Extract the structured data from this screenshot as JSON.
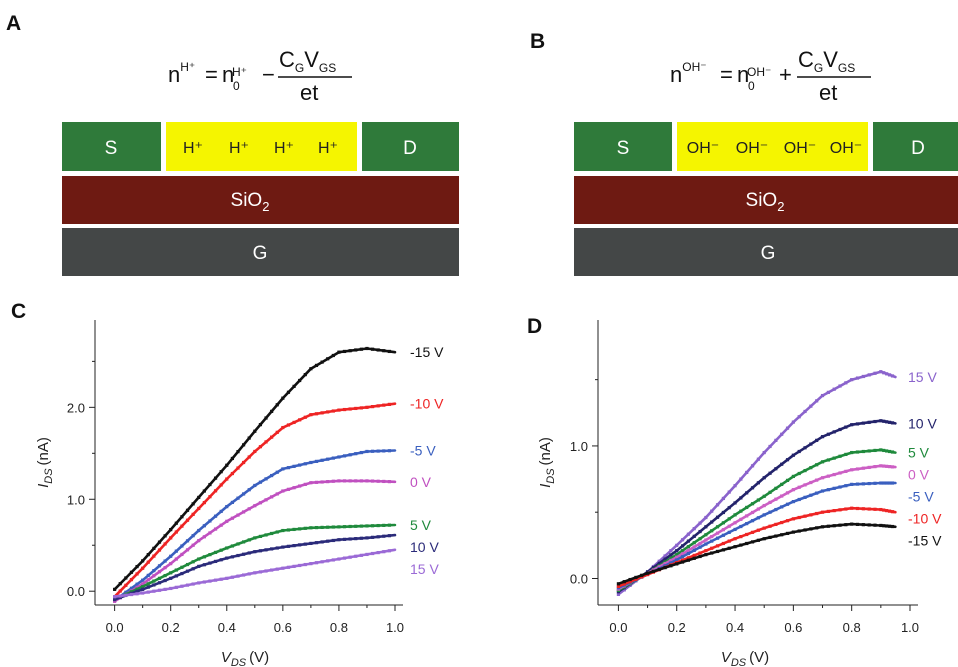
{
  "panels": {
    "a": {
      "label": "A"
    },
    "b": {
      "label": "B"
    },
    "c": {
      "label": "C"
    },
    "d": {
      "label": "D"
    }
  },
  "colors": {
    "contact": "#2f7a3a",
    "ions": "#f5f500",
    "oxide": "#6e1a12",
    "gate": "#444747"
  },
  "device_a": {
    "equation": {
      "lhs": "n",
      "lhs_sup": "H⁺",
      "eq": "=",
      "rhs": "n",
      "rhs_sub": "0",
      "rhs_sup": "H⁺",
      "op": "−",
      "num": [
        "C",
        "G",
        "V",
        "GS"
      ],
      "den": "et"
    },
    "source": "S",
    "drain": "D",
    "ions": [
      "H⁺",
      "H⁺",
      "H⁺",
      "H⁺"
    ],
    "oxide": {
      "text": "SiO",
      "sub": "2"
    },
    "gate": "G"
  },
  "device_b": {
    "equation": {
      "lhs": "n",
      "lhs_sup": "OH⁻",
      "eq": "=",
      "rhs": "n",
      "rhs_sub": "0",
      "rhs_sup": "OH⁻",
      "op": "+",
      "num": [
        "C",
        "G",
        "V",
        "GS"
      ],
      "den": "et"
    },
    "source": "S",
    "drain": "D",
    "ions": [
      "OH⁻",
      "OH⁻",
      "OH⁻",
      "OH⁻"
    ],
    "oxide": {
      "text": "SiO",
      "sub": "2"
    },
    "gate": "G"
  },
  "chart_data": [
    {
      "panel": "C",
      "type": "line",
      "xlabel": {
        "var": "V",
        "sub": "DS",
        "unit": "(V)"
      },
      "ylabel": {
        "var": "I",
        "sub": "DS",
        "unit": "(nA)"
      },
      "xlim": [
        -0.07,
        1.0
      ],
      "ylim": [
        -0.15,
        2.95
      ],
      "xticks": [
        0.0,
        0.2,
        0.4,
        0.6,
        0.8,
        1.0
      ],
      "xtick_labels": [
        "0.0",
        "0.2",
        "0.4",
        "0.6",
        "0.8",
        "1.0"
      ],
      "yticks": [
        0.0,
        1.0,
        2.0
      ],
      "ytick_labels": [
        "0.0",
        "1.0",
        "2.0"
      ],
      "x": [
        0.0,
        0.1,
        0.2,
        0.3,
        0.4,
        0.5,
        0.6,
        0.7,
        0.8,
        0.9,
        1.0
      ],
      "series": [
        {
          "name": "-15 V",
          "color": "#111111",
          "marker": "square",
          "values": [
            0.02,
            0.33,
            0.67,
            1.02,
            1.37,
            1.74,
            2.1,
            2.42,
            2.6,
            2.64,
            2.6
          ]
        },
        {
          "name": "-10 V",
          "color": "#ee2424",
          "values": [
            -0.06,
            0.25,
            0.58,
            0.9,
            1.22,
            1.52,
            1.78,
            1.92,
            1.97,
            2.0,
            2.04
          ]
        },
        {
          "name": "-5 V",
          "color": "#3a5fbf",
          "values": [
            -0.1,
            0.12,
            0.38,
            0.66,
            0.92,
            1.15,
            1.33,
            1.4,
            1.46,
            1.52,
            1.53
          ]
        },
        {
          "name": "0 V",
          "color": "#c050c0",
          "values": [
            -0.11,
            0.08,
            0.3,
            0.55,
            0.76,
            0.93,
            1.09,
            1.18,
            1.2,
            1.2,
            1.19
          ]
        },
        {
          "name": "5 V",
          "color": "#1f8a3c",
          "values": [
            -0.09,
            0.05,
            0.2,
            0.35,
            0.47,
            0.58,
            0.66,
            0.69,
            0.7,
            0.71,
            0.72
          ]
        },
        {
          "name": "10 V",
          "color": "#2b2b7a",
          "values": [
            -0.09,
            0.02,
            0.14,
            0.27,
            0.36,
            0.43,
            0.48,
            0.52,
            0.56,
            0.58,
            0.61
          ]
        },
        {
          "name": "15 V",
          "color": "#9b6ad6",
          "values": [
            -0.06,
            -0.02,
            0.03,
            0.09,
            0.14,
            0.2,
            0.25,
            0.3,
            0.35,
            0.4,
            0.45
          ]
        }
      ]
    },
    {
      "panel": "D",
      "type": "line",
      "xlabel": {
        "var": "V",
        "sub": "DS",
        "unit": "(V)"
      },
      "ylabel": {
        "var": "I",
        "sub": "DS",
        "unit": "(nA)"
      },
      "xlim": [
        -0.07,
        1.0
      ],
      "ylim": [
        -0.2,
        1.95
      ],
      "xticks": [
        0.0,
        0.2,
        0.4,
        0.6,
        0.8,
        1.0
      ],
      "xtick_labels": [
        "0.0",
        "0.2",
        "0.4",
        "0.6",
        "0.8",
        "1.0"
      ],
      "yticks": [
        0.0,
        1.0
      ],
      "ytick_labels": [
        "0.0",
        "1.0"
      ],
      "x": [
        0.0,
        0.1,
        0.2,
        0.3,
        0.4,
        0.5,
        0.6,
        0.7,
        0.8,
        0.9,
        0.95
      ],
      "series": [
        {
          "name": "15 V",
          "color": "#8a63cc",
          "marker": "square",
          "values": [
            -0.12,
            0.05,
            0.25,
            0.46,
            0.7,
            0.95,
            1.18,
            1.38,
            1.5,
            1.56,
            1.52
          ]
        },
        {
          "name": "10 V",
          "color": "#23236b",
          "values": [
            -0.1,
            0.05,
            0.21,
            0.39,
            0.57,
            0.76,
            0.93,
            1.07,
            1.16,
            1.19,
            1.17
          ]
        },
        {
          "name": "5 V",
          "color": "#1f8a3c",
          "values": [
            -0.09,
            0.04,
            0.18,
            0.33,
            0.48,
            0.62,
            0.77,
            0.88,
            0.95,
            0.97,
            0.95
          ]
        },
        {
          "name": "0 V",
          "color": "#cc5fc4",
          "values": [
            -0.08,
            0.04,
            0.16,
            0.29,
            0.42,
            0.55,
            0.67,
            0.76,
            0.82,
            0.85,
            0.84
          ]
        },
        {
          "name": "-5 V",
          "color": "#3a5fbf",
          "values": [
            -0.07,
            0.03,
            0.14,
            0.26,
            0.37,
            0.48,
            0.58,
            0.66,
            0.71,
            0.72,
            0.72
          ]
        },
        {
          "name": "-10 V",
          "color": "#ee2424",
          "values": [
            -0.06,
            0.03,
            0.12,
            0.21,
            0.3,
            0.38,
            0.45,
            0.5,
            0.53,
            0.52,
            0.5
          ]
        },
        {
          "name": "-15 V",
          "color": "#111111",
          "values": [
            -0.04,
            0.04,
            0.11,
            0.18,
            0.24,
            0.3,
            0.35,
            0.39,
            0.41,
            0.4,
            0.39
          ]
        }
      ]
    }
  ]
}
